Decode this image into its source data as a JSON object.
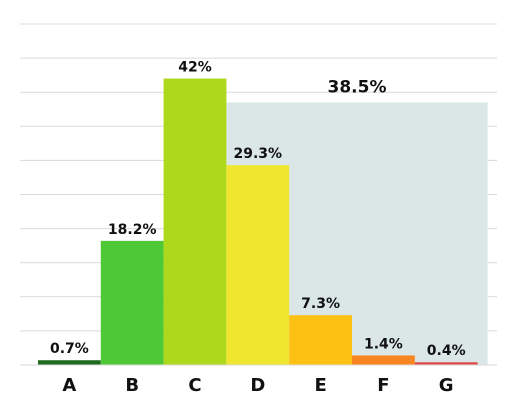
{
  "chart_data": {
    "type": "bar",
    "title": "",
    "xlabel": "",
    "ylabel": "",
    "ylim": [
      0,
      50
    ],
    "grid": true,
    "categories": [
      "A",
      "B",
      "C",
      "D",
      "E",
      "F",
      "G"
    ],
    "values": [
      0.7,
      18.2,
      42,
      29.3,
      7.3,
      1.4,
      0.4
    ],
    "value_labels": [
      "0.7%",
      "18.2%",
      "42%",
      "29.3%",
      "7.3%",
      "1.4%",
      "0.4%"
    ],
    "colors": [
      "#1e6b1e",
      "#4ec935",
      "#add81b",
      "#f0e62f",
      "#fdc113",
      "#f98521",
      "#e04646"
    ],
    "highlight": {
      "categories": [
        "D",
        "E",
        "F",
        "G"
      ],
      "label": "38.5%",
      "color": "#dbe7e7"
    }
  }
}
